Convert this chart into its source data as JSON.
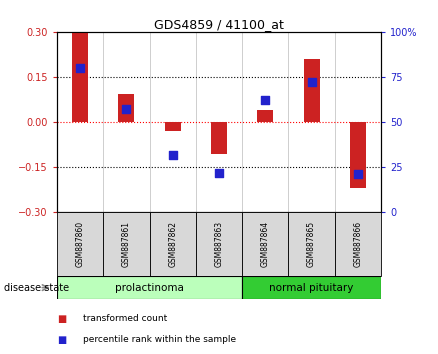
{
  "title": "GDS4859 / 41100_at",
  "samples": [
    "GSM887860",
    "GSM887861",
    "GSM887862",
    "GSM887863",
    "GSM887864",
    "GSM887865",
    "GSM887866"
  ],
  "transformed_count": [
    0.295,
    0.095,
    -0.03,
    -0.105,
    0.04,
    0.21,
    -0.22
  ],
  "percentile_rank": [
    80,
    57,
    32,
    22,
    62,
    72,
    21
  ],
  "ylim_left": [
    -0.3,
    0.3
  ],
  "ylim_right": [
    0,
    100
  ],
  "yticks_left": [
    -0.3,
    -0.15,
    0,
    0.15,
    0.3
  ],
  "yticks_right": [
    0,
    25,
    50,
    75,
    100
  ],
  "bar_color_red": "#cc2222",
  "bar_color_blue": "#2222cc",
  "group1_label": "prolactinoma",
  "group2_label": "normal pituitary",
  "group1_indices": [
    0,
    1,
    2,
    3
  ],
  "group2_indices": [
    4,
    5,
    6
  ],
  "group1_color": "#bbffbb",
  "group2_color": "#33cc33",
  "disease_state_label": "disease state",
  "legend1": "transformed count",
  "legend2": "percentile rank within the sample",
  "sample_bg_color": "#d8d8d8",
  "bar_width": 0.35,
  "dot_size": 28,
  "fig_width": 4.38,
  "fig_height": 3.54
}
